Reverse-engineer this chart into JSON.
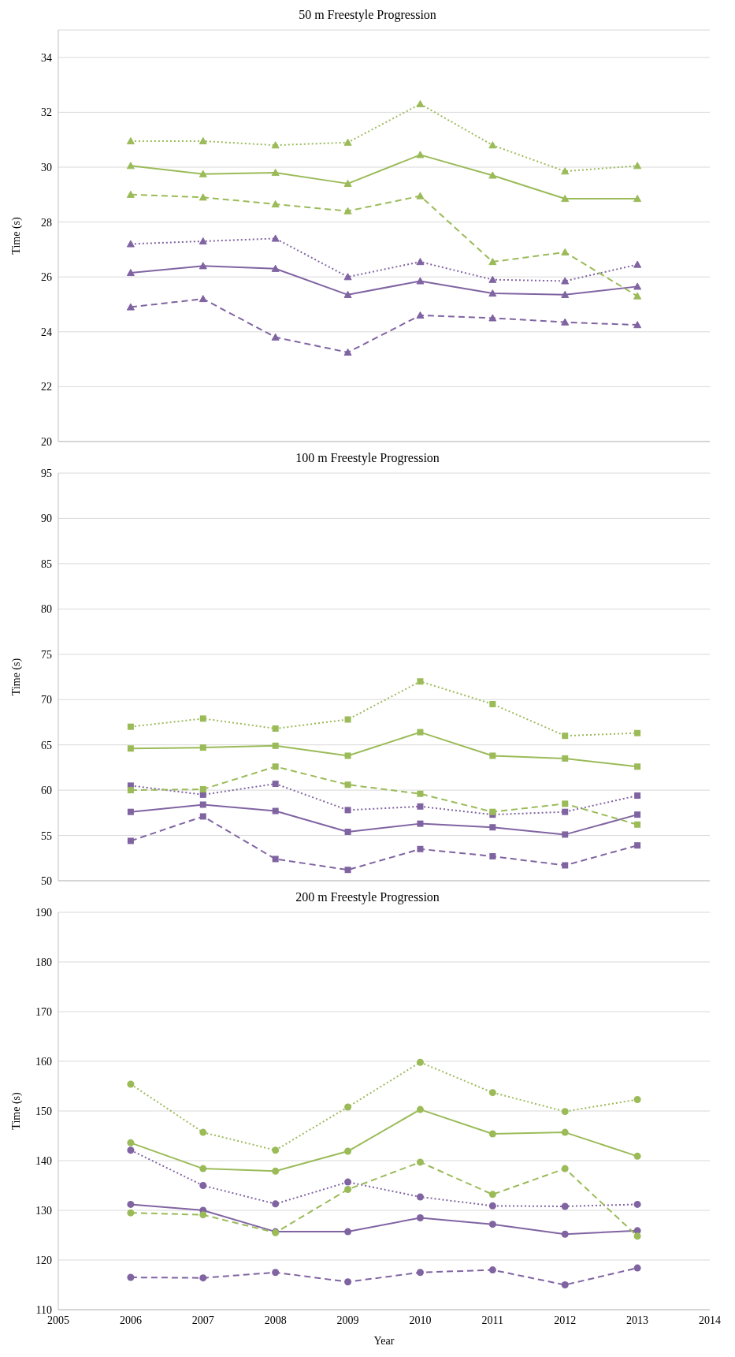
{
  "chart_data": [
    {
      "type": "line",
      "title": "50 m Freestyle Progression",
      "ylabel": "Time (s)",
      "x": [
        2006,
        2007,
        2008,
        2009,
        2010,
        2011,
        2012,
        2013
      ],
      "xlim": [
        2005,
        2014
      ],
      "ylim": [
        20,
        35
      ],
      "yticks": [
        20,
        22,
        24,
        26,
        28,
        30,
        32,
        34
      ],
      "tick_labels": "y",
      "grid": "y",
      "legend": false,
      "marker": "triangle",
      "series": [
        {
          "color": "#9bbb59",
          "line_style": "dotted",
          "values": [
            30.95,
            30.95,
            30.8,
            30.9,
            32.3,
            30.8,
            29.85,
            30.05
          ]
        },
        {
          "color": "#9bbb59",
          "line_style": "solid",
          "values": [
            30.05,
            29.75,
            29.8,
            29.4,
            30.45,
            29.7,
            28.85,
            28.85
          ]
        },
        {
          "color": "#9bbb59",
          "line_style": "dashed",
          "values": [
            29.0,
            28.9,
            28.65,
            28.4,
            28.95,
            26.55,
            26.9,
            25.3
          ]
        },
        {
          "color": "#8064a2",
          "line_style": "dotted",
          "values": [
            27.2,
            27.3,
            27.4,
            26.0,
            26.55,
            25.9,
            25.85,
            26.45
          ]
        },
        {
          "color": "#8064a2",
          "line_style": "solid",
          "values": [
            26.15,
            26.4,
            26.3,
            25.35,
            25.85,
            25.4,
            25.35,
            25.65
          ]
        },
        {
          "color": "#8064a2",
          "line_style": "dashed",
          "values": [
            24.9,
            25.2,
            23.8,
            23.25,
            24.6,
            24.5,
            24.35,
            24.25
          ]
        }
      ]
    },
    {
      "type": "line",
      "title": "100 m Freestyle Progression",
      "ylabel": "Time (s)",
      "x": [
        2006,
        2007,
        2008,
        2009,
        2010,
        2011,
        2012,
        2013
      ],
      "xlim": [
        2005,
        2014
      ],
      "ylim": [
        50,
        95
      ],
      "yticks": [
        50,
        55,
        60,
        65,
        70,
        75,
        80,
        85,
        90,
        95
      ],
      "tick_labels": "y",
      "grid": "y",
      "legend": false,
      "marker": "square",
      "series": [
        {
          "color": "#9bbb59",
          "line_style": "dotted",
          "values": [
            67.0,
            67.9,
            66.8,
            67.8,
            72.0,
            69.5,
            66.0,
            66.3
          ]
        },
        {
          "color": "#9bbb59",
          "line_style": "solid",
          "values": [
            64.6,
            64.7,
            64.9,
            63.8,
            66.4,
            63.8,
            63.5,
            62.6
          ]
        },
        {
          "color": "#9bbb59",
          "line_style": "dashed",
          "values": [
            60.0,
            60.1,
            62.6,
            60.6,
            59.6,
            57.6,
            58.5,
            56.2
          ]
        },
        {
          "color": "#8064a2",
          "line_style": "dotted",
          "values": [
            60.5,
            59.5,
            60.7,
            57.8,
            58.2,
            57.3,
            57.6,
            59.4
          ]
        },
        {
          "color": "#8064a2",
          "line_style": "solid",
          "values": [
            57.6,
            58.4,
            57.7,
            55.4,
            56.3,
            55.9,
            55.1,
            57.3
          ]
        },
        {
          "color": "#8064a2",
          "line_style": "dashed",
          "values": [
            54.4,
            57.1,
            52.4,
            51.2,
            53.5,
            52.7,
            51.7,
            53.9
          ]
        }
      ]
    },
    {
      "type": "line",
      "title": "200 m Freestyle Progression",
      "xlabel": "Year",
      "ylabel": "Time (s)",
      "x": [
        2006,
        2007,
        2008,
        2009,
        2010,
        2011,
        2012,
        2013
      ],
      "xlim": [
        2005,
        2014
      ],
      "xticks": [
        2005,
        2006,
        2007,
        2008,
        2009,
        2010,
        2011,
        2012,
        2013,
        2014
      ],
      "ylim": [
        110,
        190
      ],
      "yticks": [
        110,
        120,
        130,
        140,
        150,
        160,
        170,
        180,
        190
      ],
      "grid": "y",
      "legend": false,
      "marker": "circle",
      "series": [
        {
          "color": "#9bbb59",
          "line_style": "dotted",
          "values": [
            155.4,
            145.7,
            142.1,
            150.8,
            159.8,
            153.7,
            149.9,
            152.3
          ]
        },
        {
          "color": "#9bbb59",
          "line_style": "solid",
          "values": [
            143.6,
            138.4,
            137.9,
            141.9,
            150.3,
            145.4,
            145.7,
            140.9
          ]
        },
        {
          "color": "#9bbb59",
          "line_style": "dashed",
          "values": [
            129.5,
            129.1,
            125.5,
            134.2,
            139.7,
            133.2,
            138.4,
            124.8
          ]
        },
        {
          "color": "#8064a2",
          "line_style": "dotted",
          "values": [
            142.1,
            135.0,
            131.3,
            135.7,
            132.7,
            130.9,
            130.8,
            131.2
          ]
        },
        {
          "color": "#8064a2",
          "line_style": "solid",
          "values": [
            131.2,
            130.0,
            125.7,
            125.7,
            128.5,
            127.2,
            125.2,
            125.9
          ]
        },
        {
          "color": "#8064a2",
          "line_style": "dashed",
          "values": [
            116.5,
            116.4,
            117.5,
            115.6,
            117.5,
            118.0,
            115.0,
            118.4
          ]
        }
      ]
    }
  ]
}
